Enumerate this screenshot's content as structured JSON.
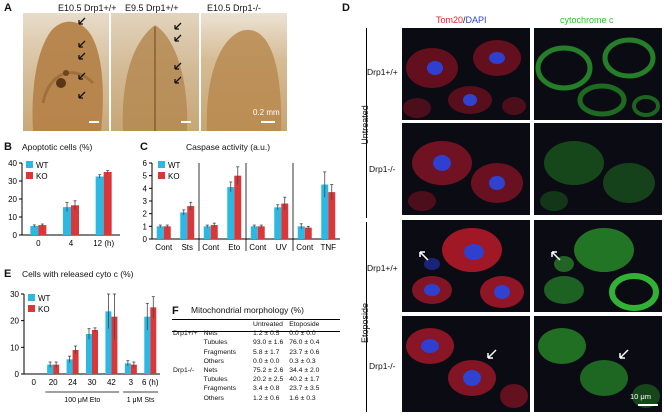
{
  "colors": {
    "wt": "#2bb9e3",
    "ko": "#d9383a",
    "tom20": "#e03030",
    "dapi": "#2b3fd6",
    "cytc": "#2fcf3a",
    "embryo": "#b7884a"
  },
  "panelA": {
    "letter": "A",
    "images": [
      {
        "title": "E10.5 Drp1+/+"
      },
      {
        "title": "E9.5 Drp1+/+"
      },
      {
        "title": "E10.5 Drp1-/-"
      }
    ],
    "scale_label": "0.2 mm"
  },
  "panelB": {
    "letter": "B",
    "title": "Apoptotic cells (%)",
    "chart_data": {
      "type": "bar",
      "categories": [
        "0",
        "4",
        "12 (h)"
      ],
      "series": [
        {
          "name": "WT",
          "values": [
            5,
            15.5,
            32.5
          ],
          "err": [
            0.6,
            2.5,
            1.0
          ]
        },
        {
          "name": "KO",
          "values": [
            5.5,
            16.5,
            35
          ],
          "err": [
            0.6,
            2.5,
            0.8
          ]
        }
      ],
      "ylim": [
        0,
        40
      ],
      "yticks": [
        "0",
        "10",
        "20",
        "30",
        "40"
      ]
    }
  },
  "panelC": {
    "letter": "C",
    "title": "Caspase activity (a.u.)",
    "chart_data": {
      "type": "bar",
      "categories": [
        "Cont",
        "Sts",
        "Cont",
        "Eto",
        "Cont",
        "UV",
        "Cont",
        "TNF"
      ],
      "series": [
        {
          "name": "WT",
          "values": [
            1.0,
            2.1,
            1.0,
            4.1,
            1.0,
            2.5,
            1.0,
            4.3
          ],
          "err": [
            0.1,
            0.2,
            0.1,
            0.4,
            0.1,
            0.2,
            0.2,
            1.0
          ]
        },
        {
          "name": "KO",
          "values": [
            1.0,
            2.6,
            1.1,
            5.0,
            1.0,
            2.8,
            0.9,
            3.7
          ],
          "err": [
            0.1,
            0.3,
            0.15,
            0.7,
            0.1,
            0.5,
            0.1,
            0.6
          ]
        }
      ],
      "ylim": [
        0,
        6
      ],
      "yticks": [
        "0",
        "1",
        "2",
        "3",
        "4",
        "5",
        "6"
      ]
    }
  },
  "panelD": {
    "letter": "D",
    "col_titles": {
      "tom": "Tom20",
      "slash": "/",
      "dapi": "DAPI",
      "cyt": "cytochrome c"
    },
    "rows": [
      "Drp1+/+",
      "Drp1-/-",
      "Drp1+/+",
      "Drp1-/-"
    ],
    "groups": [
      "Untreated",
      "Etoposide"
    ],
    "scale_label": "10 μm"
  },
  "panelE": {
    "letter": "E",
    "title": "Cells with released cyto c (%)",
    "chart_data": {
      "type": "bar",
      "categories": [
        "0",
        "20",
        "24",
        "30",
        "42",
        "3",
        "6 (h)"
      ],
      "series": [
        {
          "name": "WT",
          "values": [
            0,
            3.5,
            5.5,
            15,
            23.5,
            4,
            21.5
          ],
          "err": [
            0,
            1.0,
            1.2,
            2.0,
            6.5,
            1.0,
            5.0
          ]
        },
        {
          "name": "KO",
          "values": [
            0,
            3.5,
            9,
            16.5,
            21.5,
            3.5,
            25
          ],
          "err": [
            0,
            1.0,
            1.5,
            0.8,
            8.5,
            1.0,
            4.0
          ]
        }
      ],
      "ylim": [
        0,
        30
      ],
      "yticks": [
        "0",
        "10",
        "20",
        "30"
      ],
      "groups": [
        "100 μM Eto",
        "1 μM Sts"
      ]
    }
  },
  "panelF": {
    "letter": "F",
    "title": "Mitochondrial morphology (%)",
    "headers": [
      "Untreated",
      "Etoposide"
    ],
    "rows": [
      {
        "geno": "Drp1+/+",
        "morph": "Nets",
        "u": "1.2 ± 0.5",
        "e": "0.0 ± 0.0"
      },
      {
        "geno": "",
        "morph": "Tubules",
        "u": "93.0 ± 1.6",
        "e": "76.0 ± 0.4"
      },
      {
        "geno": "",
        "morph": "Fragments",
        "u": "5.8 ± 1.7",
        "e": "23.7 ± 0.6"
      },
      {
        "geno": "",
        "morph": "Others",
        "u": "0.0 ± 0.0",
        "e": "0.3 ± 0.3"
      },
      {
        "geno": "Drp1-/-",
        "morph": "Nets",
        "u": "75.2 ± 2.6",
        "e": "34.4 ± 2.0"
      },
      {
        "geno": "",
        "morph": "Tubules",
        "u": "20.2 ± 2.5",
        "e": "40.2 ± 1.7"
      },
      {
        "geno": "",
        "morph": "Fragments",
        "u": "3.4 ± 0.8",
        "e": "23.7 ± 3.5"
      },
      {
        "geno": "",
        "morph": "Others",
        "u": "1.2 ± 0.6",
        "e": "1.6 ± 0.3"
      }
    ]
  }
}
